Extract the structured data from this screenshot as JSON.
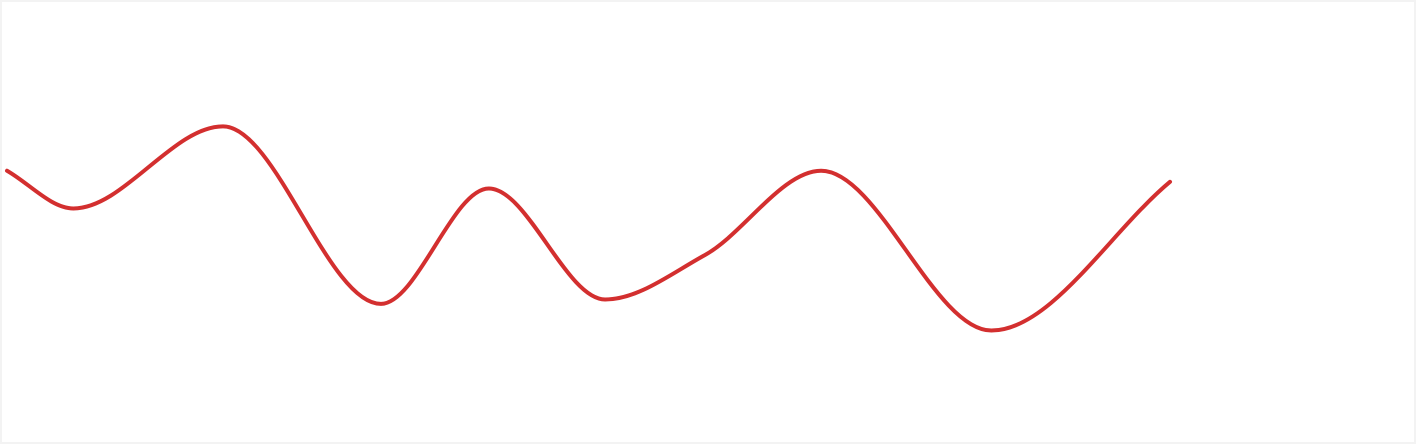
{
  "chart_data": {
    "type": "line",
    "title": "",
    "xlabel": "",
    "ylabel": "",
    "grid": false,
    "legend": "none",
    "smooth": true,
    "xlim": [
      0,
      14
    ],
    "ylim": [
      0,
      1
    ],
    "series": [
      {
        "color": "#d32f2f",
        "x": [
          0,
          0.8,
          2.6,
          4.5,
          5.8,
          7.2,
          8.4,
          9.8,
          11.85,
          14
        ],
        "y": [
          0.62,
          0.535,
          0.72,
          0.32,
          0.58,
          0.33,
          0.43,
          0.62,
          0.26,
          0.595
        ]
      }
    ]
  }
}
